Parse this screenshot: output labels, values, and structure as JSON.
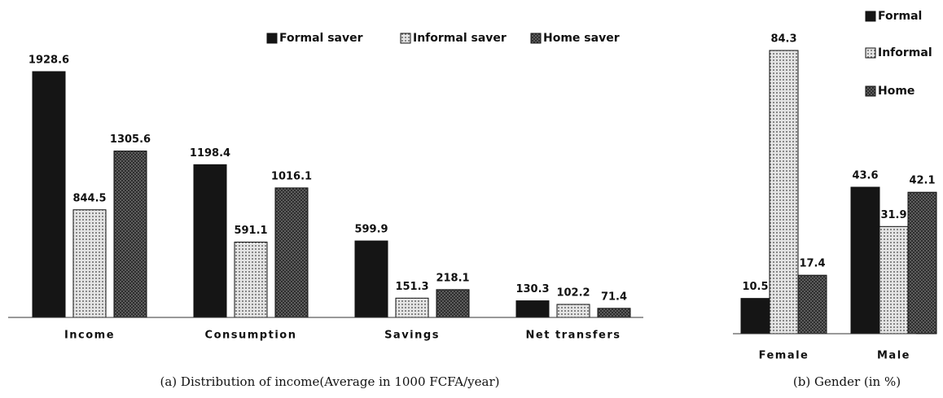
{
  "chart_data": [
    {
      "type": "bar",
      "caption": "(a) Distribution of income(Average in 1000 FCFA/year)",
      "categories": [
        "Income",
        "Consumption",
        "Savings",
        "Net transfers"
      ],
      "series": [
        {
          "name": "Formal saver",
          "color": "#151515",
          "values": [
            1928.6,
            1198.4,
            599.9,
            130.3
          ]
        },
        {
          "name": "Informal saver",
          "color": "#e4e4e4",
          "values": [
            844.5,
            591.1,
            151.3,
            102.2
          ]
        },
        {
          "name": "Home saver",
          "color": "#6a6a6a",
          "values": [
            1305.6,
            1016.1,
            218.1,
            71.4
          ]
        }
      ]
    },
    {
      "type": "bar",
      "caption": "(b) Gender (in %)",
      "categories": [
        "Female",
        "Male"
      ],
      "series": [
        {
          "name": "Formal",
          "color": "#151515",
          "values": [
            10.5,
            43.6
          ]
        },
        {
          "name": "Informal",
          "color": "#e4e4e4",
          "values": [
            84.3,
            31.9
          ]
        },
        {
          "name": "Home",
          "color": "#6a6a6a",
          "values": [
            17.4,
            42.1
          ]
        }
      ]
    }
  ]
}
